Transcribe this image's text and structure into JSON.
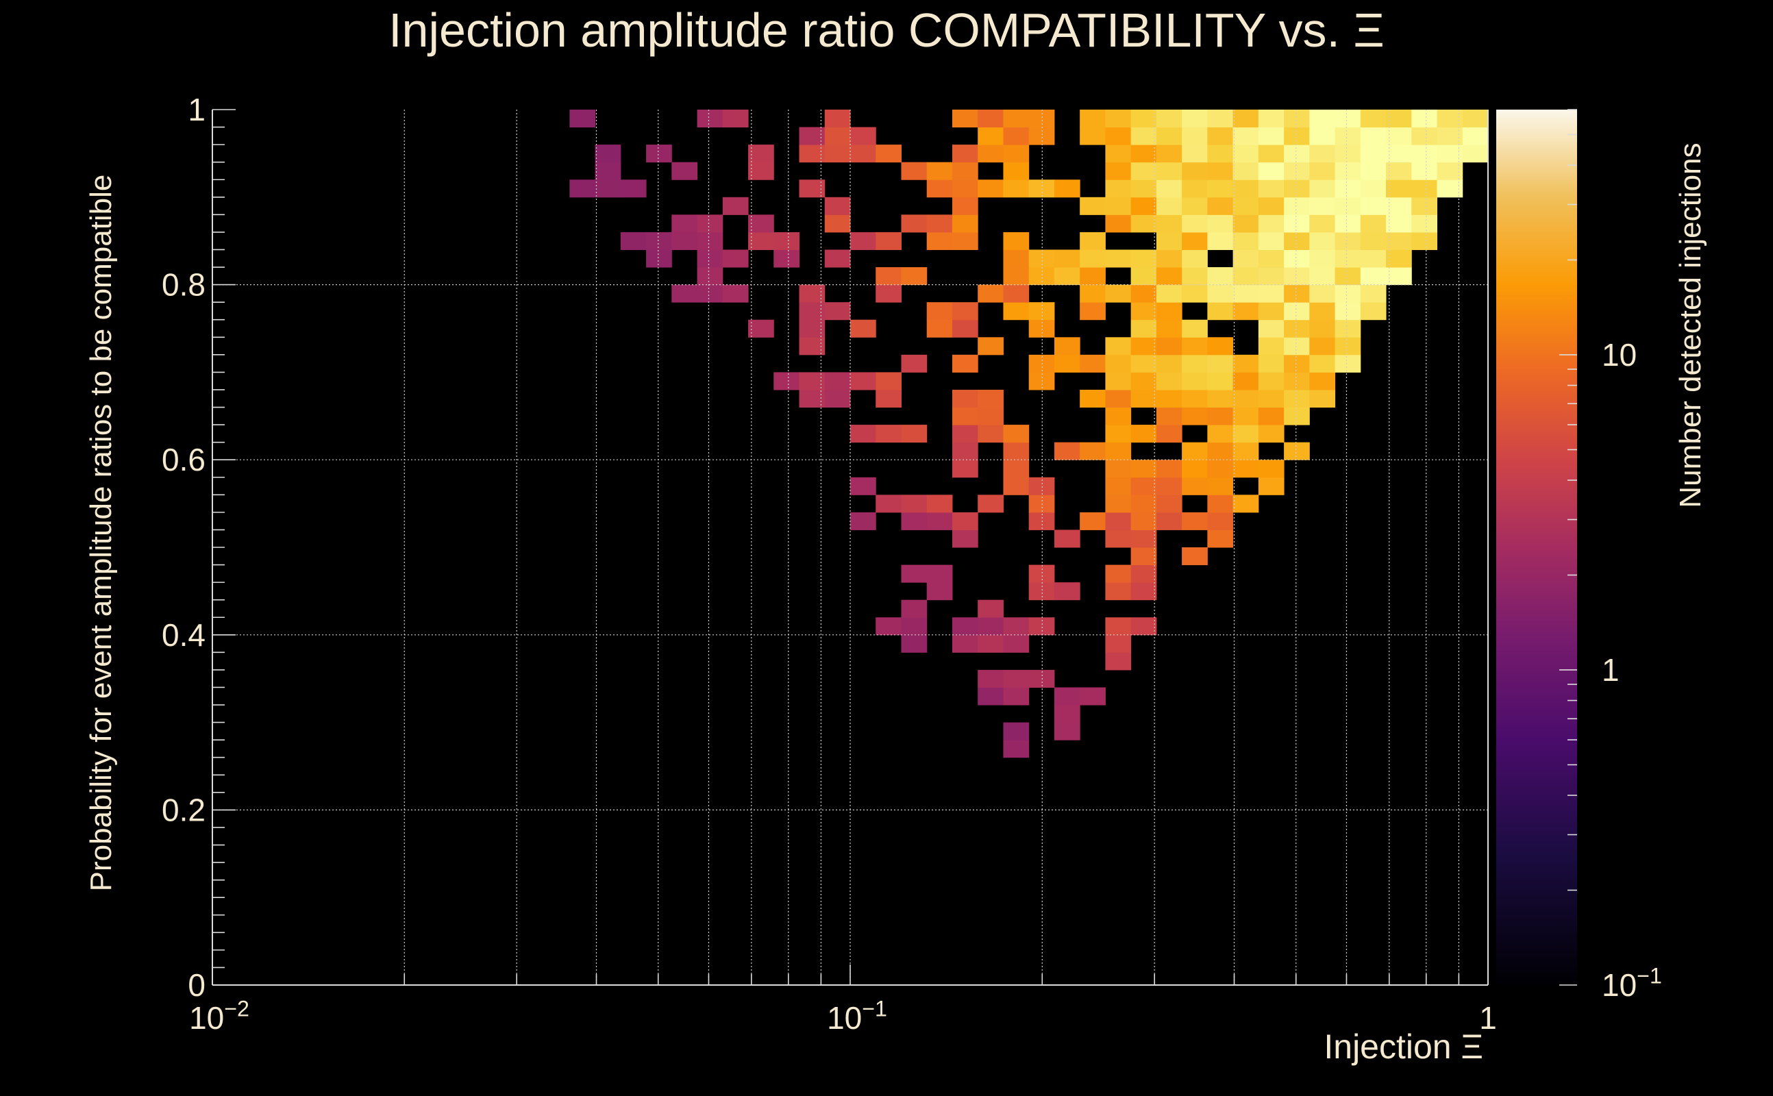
{
  "chart_data": {
    "type": "heatmap",
    "title": "Injection amplitude ratio COMPATIBILITY vs.  Ξ",
    "xlabel": "Injection Ξ",
    "ylabel": "Probability for event amplitude ratios to be compatible",
    "zlabel": "Number detected injections",
    "x_scale": "log",
    "xlim": [
      0.01,
      1
    ],
    "ylim": [
      0,
      1
    ],
    "zlim": [
      0.1,
      60
    ],
    "z_scale": "log",
    "grid": true,
    "x_ticks": [
      {
        "value": 0.01,
        "base": "10",
        "exp": "−2"
      },
      {
        "value": 0.1,
        "base": "10",
        "exp": "−1"
      },
      {
        "value": 1,
        "base": "1",
        "exp": ""
      }
    ],
    "y_ticks": [
      "0",
      "0.2",
      "0.4",
      "0.6",
      "0.8",
      "1"
    ],
    "z_ticks": [
      {
        "value": 0.1,
        "base": "10",
        "exp": "−1"
      },
      {
        "value": 1,
        "base": "1",
        "exp": ""
      },
      {
        "value": 10,
        "base": "10",
        "exp": ""
      }
    ],
    "colorscale": [
      "#000000",
      "#1b0c41",
      "#4a0c6b",
      "#781c6d",
      "#a52c60",
      "#cf4446",
      "#ed6925",
      "#fb9b06",
      "#f7d13d",
      "#fcffa4"
    ],
    "bins": {
      "nx": 50,
      "ny": 50,
      "x_range_log": [
        -2,
        0
      ],
      "y_range": [
        0,
        1
      ]
    },
    "hotspot": {
      "x": 0.85,
      "y": 0.95
    },
    "spread": {
      "x_log_min": -1.42,
      "y_min_at_x01": 0.45,
      "y_min_at_x02": 0.22
    }
  }
}
